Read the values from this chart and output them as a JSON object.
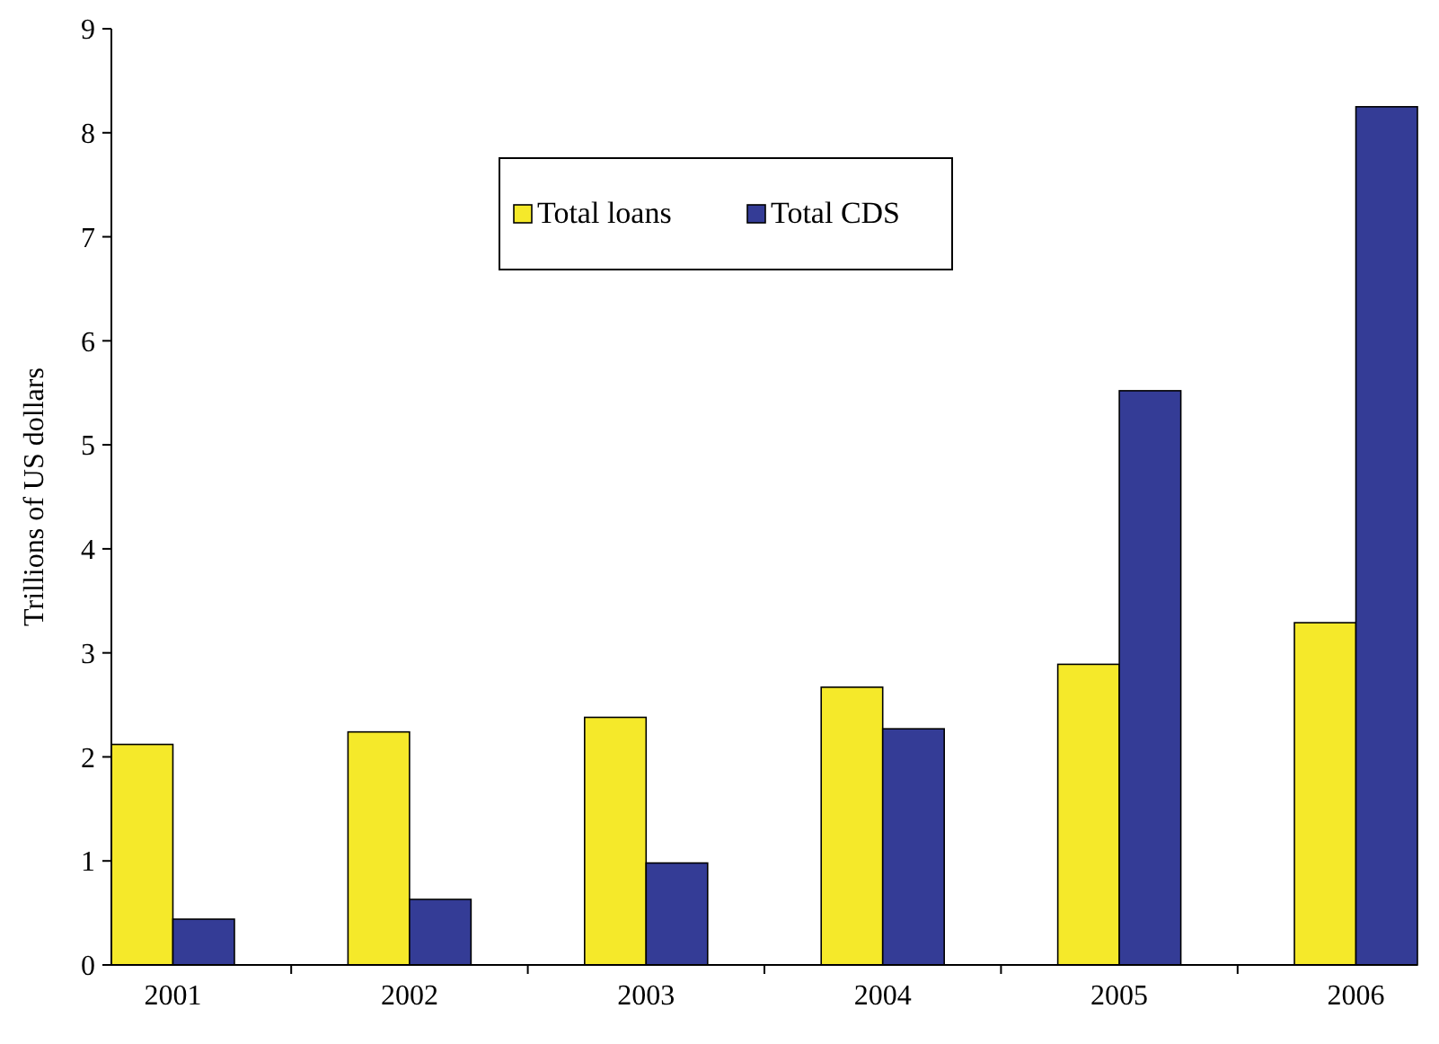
{
  "chart_data": {
    "type": "bar",
    "ylabel": "Trillions of US dollars",
    "categories": [
      "2001",
      "2002",
      "2003",
      "2004",
      "2005",
      "2006"
    ],
    "series": [
      {
        "name": "Total loans",
        "color": "#f5e92a",
        "values": [
          2.12,
          2.24,
          2.38,
          2.67,
          2.89,
          3.29
        ]
      },
      {
        "name": "Total CDS",
        "color": "#343c96",
        "values": [
          0.44,
          0.63,
          0.98,
          2.27,
          5.52,
          8.25
        ]
      }
    ],
    "ylim": [
      0,
      9
    ],
    "yticks": [
      0,
      1,
      2,
      3,
      4,
      5,
      6,
      7,
      8,
      9
    ],
    "grid": false,
    "legend": "top"
  }
}
